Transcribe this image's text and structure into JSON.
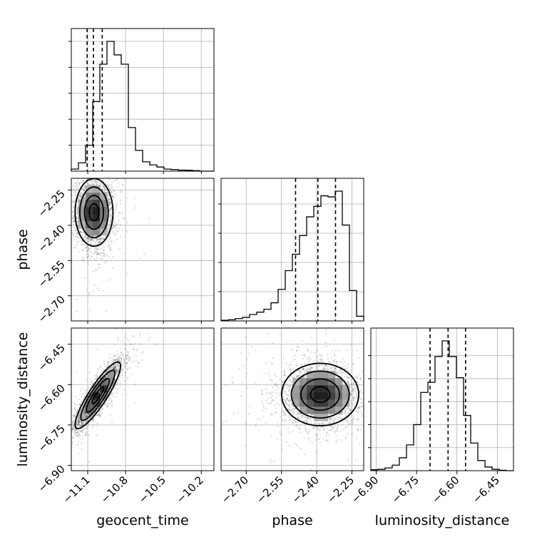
{
  "chart_data": {
    "type": "corner",
    "grid": true,
    "parameters": [
      "geocent_time",
      "phase",
      "luminosity_distance"
    ],
    "ranges": {
      "geocent_time": [
        -11.23,
        -10.1
      ],
      "phase": [
        -2.807,
        -2.2
      ],
      "luminosity_distance": [
        -6.92,
        -6.39
      ]
    },
    "ticks": {
      "geocent_time": {
        "values": [
          -11.1,
          -10.8,
          -10.5,
          -10.2
        ],
        "labels": [
          "−11.1",
          "−10.8",
          "−10.5",
          "−10.2"
        ]
      },
      "phase": {
        "values": [
          -2.7,
          -2.55,
          -2.4,
          -2.25
        ],
        "labels": [
          "−2.70",
          "−2.55",
          "−2.40",
          "−2.25"
        ]
      },
      "luminosity_distance": {
        "values": [
          -6.9,
          -6.75,
          -6.6,
          -6.45
        ],
        "labels": [
          "−6.90",
          "−6.75",
          "−6.60",
          "−6.45"
        ]
      }
    },
    "histograms": {
      "geocent_time": {
        "edges_range": [
          -11.23,
          -10.1
        ],
        "counts": [
          0.02,
          0.08,
          0.25,
          0.67,
          1.03,
          1.25,
          1.12,
          1.03,
          0.42,
          0.2,
          0.09,
          0.06,
          0.04,
          0.02,
          0.015,
          0.01,
          0.008,
          0.005,
          0.0,
          0.0
        ],
        "quantiles": [
          -11.105,
          -11.055,
          -10.985
        ]
      },
      "phase": {
        "edges_range": [
          -2.807,
          -2.2
        ],
        "counts": [
          0.005,
          0.01,
          0.02,
          0.03,
          0.055,
          0.075,
          0.1,
          0.155,
          0.27,
          0.43,
          0.57,
          0.73,
          0.89,
          0.98,
          1.07,
          1.06,
          1.11,
          0.82,
          0.26,
          0.04
        ],
        "quantiles": [
          -2.49,
          -2.395,
          -2.32
        ]
      },
      "luminosity_distance": {
        "edges_range": [
          -6.92,
          -6.39
        ],
        "counts": [
          0.01,
          0.015,
          0.03,
          0.06,
          0.14,
          0.28,
          0.5,
          0.85,
          0.96,
          1.24,
          1.41,
          1.24,
          1.01,
          0.6,
          0.3,
          0.11,
          0.04,
          0.015,
          0.005,
          0.0
        ],
        "quantiles": [
          -6.7,
          -6.633,
          -6.568
        ]
      }
    },
    "panels2d": [
      {
        "x": "geocent_time",
        "y": "phase",
        "mean": [
          -11.05,
          -2.345
        ],
        "sigma": [
          0.075,
          0.072
        ],
        "rho": 0.0
      },
      {
        "x": "geocent_time",
        "y": "luminosity_distance",
        "mean": [
          -11.02,
          -6.64
        ],
        "sigma": [
          0.09,
          0.062
        ],
        "rho": 0.88
      },
      {
        "x": "phase",
        "y": "luminosity_distance",
        "mean": [
          -2.385,
          -6.637
        ],
        "sigma": [
          0.082,
          0.058
        ],
        "rho": 0.0
      }
    ]
  }
}
